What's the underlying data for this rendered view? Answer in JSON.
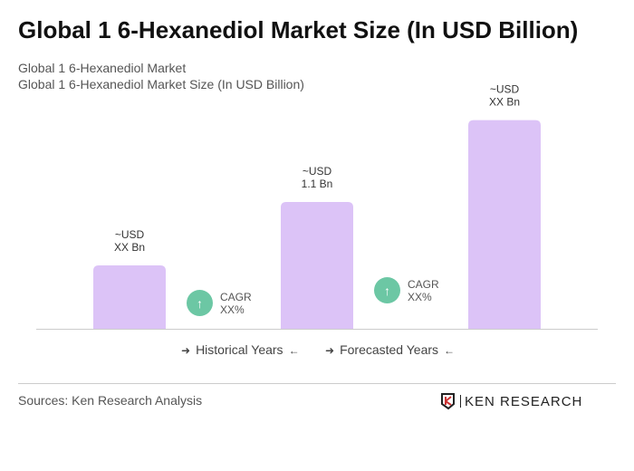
{
  "title": "Global 1 6-Hexanediol Market Size (In USD Billion)",
  "subtitle1": "Global 1 6-Hexanediol Market",
  "subtitle2": "Global 1 6-Hexanediol Market Size (In USD Billion)",
  "chart_data": {
    "type": "bar",
    "categories": [
      "",
      "",
      ""
    ],
    "values": [
      0.55,
      1.1,
      1.81
    ],
    "data_labels": [
      [
        "~USD",
        "XX Bn"
      ],
      [
        "~USD",
        "1.1 Bn"
      ],
      [
        "~USD",
        "XX Bn"
      ]
    ],
    "bar_color": "#dcc3f7",
    "grid": false
  },
  "cagr": [
    {
      "label": "CAGR",
      "value": "XX%"
    },
    {
      "label": "CAGR",
      "value": "XX%"
    }
  ],
  "cagr_color": "#6cc7a4",
  "legend": {
    "historical": "Historical Years",
    "forecasted": "Forecasted Years",
    "arrow_right": "➜",
    "arrow_left": "←"
  },
  "source": "Sources: Ken Research Analysis",
  "logo_text": "KEN RESEARCH"
}
